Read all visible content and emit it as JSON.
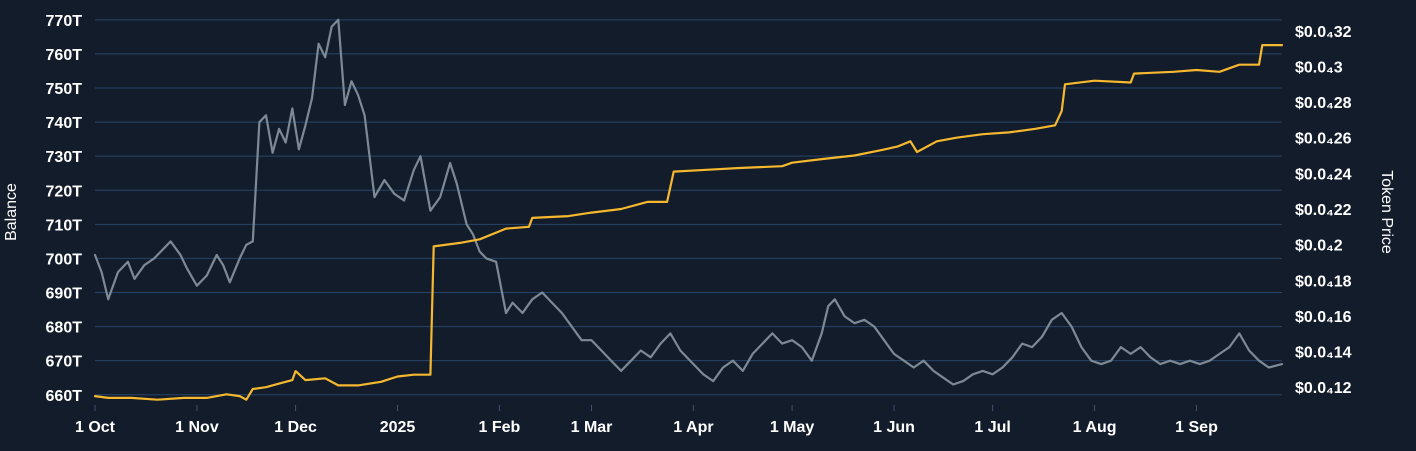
{
  "chart_data": {
    "type": "line",
    "xlabel": "",
    "ylabel_left": "Balance",
    "ylabel_right": "Token Price",
    "grid": true,
    "x_tick_labels": [
      "1 Oct",
      "1 Nov",
      "1 Dec",
      "2025",
      "1 Feb",
      "1 Mar",
      "1 Apr",
      "1 May",
      "1 Jun",
      "1 Jul",
      "1 Aug",
      "1 Sep"
    ],
    "x_ticks": [
      "2024-10-01",
      "2024-11-01",
      "2024-12-01",
      "2025-01-01",
      "2025-02-01",
      "2025-03-01",
      "2025-04-01",
      "2025-05-01",
      "2025-06-01",
      "2025-07-01",
      "2025-08-01",
      "2025-09-01"
    ],
    "x_range": [
      "2024-10-01",
      "2025-09-27"
    ],
    "left_axis": {
      "ylim": [
        657,
        772
      ],
      "ticks": [
        660,
        670,
        680,
        690,
        700,
        710,
        720,
        730,
        740,
        750,
        760,
        770
      ],
      "tick_labels": [
        "660T",
        "670T",
        "680T",
        "690T",
        "700T",
        "710T",
        "720T",
        "730T",
        "740T",
        "750T",
        "760T",
        "770T"
      ]
    },
    "right_axis": {
      "ylim": [
        0.11,
        0.33
      ],
      "ticks": [
        0.12,
        0.14,
        0.16,
        0.18,
        0.2,
        0.22,
        0.24,
        0.26,
        0.28,
        0.3,
        0.32
      ],
      "tick_labels": [
        "$0.0₄12",
        "$0.0₄14",
        "$0.0₄16",
        "$0.0₄18",
        "$0.0₄2",
        "$0.0₄22",
        "$0.0₄24",
        "$0.0₄26",
        "$0.0₄28",
        "$0.0₄3",
        "$0.0₄32"
      ]
    },
    "series": [
      {
        "axis": "left",
        "color": "#7d8994",
        "points": [
          [
            "2024-10-01",
            701
          ],
          [
            "2024-10-03",
            696
          ],
          [
            "2024-10-05",
            688
          ],
          [
            "2024-10-08",
            696
          ],
          [
            "2024-10-11",
            699
          ],
          [
            "2024-10-13",
            694
          ],
          [
            "2024-10-16",
            698
          ],
          [
            "2024-10-19",
            700
          ],
          [
            "2024-10-22",
            703
          ],
          [
            "2024-10-24",
            705
          ],
          [
            "2024-10-27",
            701
          ],
          [
            "2024-10-29",
            697
          ],
          [
            "2024-11-01",
            692
          ],
          [
            "2024-11-04",
            695
          ],
          [
            "2024-11-07",
            701
          ],
          [
            "2024-11-09",
            698
          ],
          [
            "2024-11-11",
            693
          ],
          [
            "2024-11-14",
            700
          ],
          [
            "2024-11-16",
            704
          ],
          [
            "2024-11-18",
            705
          ],
          [
            "2024-11-20",
            740
          ],
          [
            "2024-11-22",
            742
          ],
          [
            "2024-11-24",
            731
          ],
          [
            "2024-11-26",
            738
          ],
          [
            "2024-11-28",
            734
          ],
          [
            "2024-11-30",
            744
          ],
          [
            "2024-12-02",
            732
          ],
          [
            "2024-12-04",
            739
          ],
          [
            "2024-12-06",
            747
          ],
          [
            "2024-12-08",
            763
          ],
          [
            "2024-12-10",
            759
          ],
          [
            "2024-12-12",
            768
          ],
          [
            "2024-12-14",
            770
          ],
          [
            "2024-12-16",
            745
          ],
          [
            "2024-12-18",
            752
          ],
          [
            "2024-12-20",
            748
          ],
          [
            "2024-12-22",
            742
          ],
          [
            "2024-12-25",
            718
          ],
          [
            "2024-12-28",
            723
          ],
          [
            "2024-12-31",
            719
          ],
          [
            "2025-01-03",
            717
          ],
          [
            "2025-01-06",
            726
          ],
          [
            "2025-01-08",
            730
          ],
          [
            "2025-01-11",
            714
          ],
          [
            "2025-01-14",
            718
          ],
          [
            "2025-01-17",
            728
          ],
          [
            "2025-01-19",
            722
          ],
          [
            "2025-01-22",
            710
          ],
          [
            "2025-01-24",
            707
          ],
          [
            "2025-01-26",
            702
          ],
          [
            "2025-01-28",
            700
          ],
          [
            "2025-01-31",
            699
          ],
          [
            "2025-02-03",
            684
          ],
          [
            "2025-02-05",
            687
          ],
          [
            "2025-02-08",
            684
          ],
          [
            "2025-02-11",
            688
          ],
          [
            "2025-02-14",
            690
          ],
          [
            "2025-02-17",
            687
          ],
          [
            "2025-02-20",
            684
          ],
          [
            "2025-02-23",
            680
          ],
          [
            "2025-02-26",
            676
          ],
          [
            "2025-03-01",
            676
          ],
          [
            "2025-03-04",
            673
          ],
          [
            "2025-03-07",
            670
          ],
          [
            "2025-03-10",
            667
          ],
          [
            "2025-03-13",
            670
          ],
          [
            "2025-03-16",
            673
          ],
          [
            "2025-03-19",
            671
          ],
          [
            "2025-03-22",
            675
          ],
          [
            "2025-03-25",
            678
          ],
          [
            "2025-03-28",
            673
          ],
          [
            "2025-04-01",
            669
          ],
          [
            "2025-04-04",
            666
          ],
          [
            "2025-04-07",
            664
          ],
          [
            "2025-04-10",
            668
          ],
          [
            "2025-04-13",
            670
          ],
          [
            "2025-04-16",
            667
          ],
          [
            "2025-04-19",
            672
          ],
          [
            "2025-04-22",
            675
          ],
          [
            "2025-04-25",
            678
          ],
          [
            "2025-04-28",
            675
          ],
          [
            "2025-05-01",
            676
          ],
          [
            "2025-05-04",
            674
          ],
          [
            "2025-05-07",
            670
          ],
          [
            "2025-05-10",
            678
          ],
          [
            "2025-05-12",
            686
          ],
          [
            "2025-05-14",
            688
          ],
          [
            "2025-05-17",
            683
          ],
          [
            "2025-05-20",
            681
          ],
          [
            "2025-05-23",
            682
          ],
          [
            "2025-05-26",
            680
          ],
          [
            "2025-05-29",
            676
          ],
          [
            "2025-06-01",
            672
          ],
          [
            "2025-06-04",
            670
          ],
          [
            "2025-06-07",
            668
          ],
          [
            "2025-06-10",
            670
          ],
          [
            "2025-06-13",
            667
          ],
          [
            "2025-06-16",
            665
          ],
          [
            "2025-06-19",
            663
          ],
          [
            "2025-06-22",
            664
          ],
          [
            "2025-06-25",
            666
          ],
          [
            "2025-06-28",
            667
          ],
          [
            "2025-07-01",
            666
          ],
          [
            "2025-07-04",
            668
          ],
          [
            "2025-07-07",
            671
          ],
          [
            "2025-07-10",
            675
          ],
          [
            "2025-07-13",
            674
          ],
          [
            "2025-07-16",
            677
          ],
          [
            "2025-07-19",
            682
          ],
          [
            "2025-07-22",
            684
          ],
          [
            "2025-07-25",
            680
          ],
          [
            "2025-07-28",
            674
          ],
          [
            "2025-07-31",
            670
          ],
          [
            "2025-08-03",
            669
          ],
          [
            "2025-08-06",
            670
          ],
          [
            "2025-08-09",
            674
          ],
          [
            "2025-08-12",
            672
          ],
          [
            "2025-08-15",
            674
          ],
          [
            "2025-08-18",
            671
          ],
          [
            "2025-08-21",
            669
          ],
          [
            "2025-08-24",
            670
          ],
          [
            "2025-08-27",
            669
          ],
          [
            "2025-08-30",
            670
          ],
          [
            "2025-09-02",
            669
          ],
          [
            "2025-09-05",
            670
          ],
          [
            "2025-09-08",
            672
          ],
          [
            "2025-09-11",
            674
          ],
          [
            "2025-09-14",
            678
          ],
          [
            "2025-09-17",
            673
          ],
          [
            "2025-09-20",
            670
          ],
          [
            "2025-09-23",
            668
          ],
          [
            "2025-09-27",
            669
          ]
        ]
      },
      {
        "axis": "right",
        "color": "#f5b82e",
        "points": [
          [
            "2024-10-01",
            0.115
          ],
          [
            "2024-10-05",
            0.114
          ],
          [
            "2024-10-12",
            0.114
          ],
          [
            "2024-10-20",
            0.113
          ],
          [
            "2024-10-28",
            0.114
          ],
          [
            "2024-11-04",
            0.114
          ],
          [
            "2024-11-10",
            0.116
          ],
          [
            "2024-11-14",
            0.115
          ],
          [
            "2024-11-16",
            0.113
          ],
          [
            "2024-11-18",
            0.119
          ],
          [
            "2024-11-22",
            0.12
          ],
          [
            "2024-11-26",
            0.122
          ],
          [
            "2024-11-30",
            0.124
          ],
          [
            "2024-12-01",
            0.129
          ],
          [
            "2024-12-04",
            0.124
          ],
          [
            "2024-12-10",
            0.125
          ],
          [
            "2024-12-14",
            0.121
          ],
          [
            "2024-12-20",
            0.121
          ],
          [
            "2024-12-27",
            0.123
          ],
          [
            "2025-01-01",
            0.126
          ],
          [
            "2025-01-06",
            0.127
          ],
          [
            "2025-01-11",
            0.127
          ],
          [
            "2025-01-12",
            0.199
          ],
          [
            "2025-01-20",
            0.201
          ],
          [
            "2025-01-26",
            0.203
          ],
          [
            "2025-02-03",
            0.209
          ],
          [
            "2025-02-10",
            0.21
          ],
          [
            "2025-02-11",
            0.215
          ],
          [
            "2025-02-22",
            0.216
          ],
          [
            "2025-03-01",
            0.218
          ],
          [
            "2025-03-10",
            0.22
          ],
          [
            "2025-03-18",
            0.224
          ],
          [
            "2025-03-24",
            0.224
          ],
          [
            "2025-03-26",
            0.241
          ],
          [
            "2025-04-05",
            0.242
          ],
          [
            "2025-04-15",
            0.243
          ],
          [
            "2025-04-28",
            0.244
          ],
          [
            "2025-05-01",
            0.246
          ],
          [
            "2025-05-10",
            0.248
          ],
          [
            "2025-05-20",
            0.25
          ],
          [
            "2025-05-28",
            0.253
          ],
          [
            "2025-06-02",
            0.255
          ],
          [
            "2025-06-06",
            0.258
          ],
          [
            "2025-06-08",
            0.252
          ],
          [
            "2025-06-14",
            0.258
          ],
          [
            "2025-06-20",
            0.26
          ],
          [
            "2025-06-28",
            0.262
          ],
          [
            "2025-07-06",
            0.263
          ],
          [
            "2025-07-14",
            0.265
          ],
          [
            "2025-07-20",
            0.267
          ],
          [
            "2025-07-22",
            0.275
          ],
          [
            "2025-07-23",
            0.29
          ],
          [
            "2025-08-01",
            0.292
          ],
          [
            "2025-08-12",
            0.291
          ],
          [
            "2025-08-13",
            0.296
          ],
          [
            "2025-08-25",
            0.297
          ],
          [
            "2025-09-01",
            0.298
          ],
          [
            "2025-09-08",
            0.297
          ],
          [
            "2025-09-14",
            0.301
          ],
          [
            "2025-09-20",
            0.301
          ],
          [
            "2025-09-21",
            0.312
          ],
          [
            "2025-09-27",
            0.312
          ]
        ]
      }
    ]
  }
}
